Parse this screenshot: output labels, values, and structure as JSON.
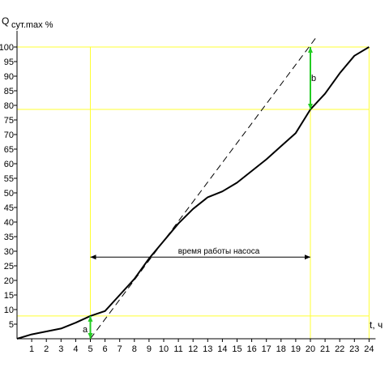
{
  "chart_data": {
    "type": "line",
    "xlabel": "t, ч",
    "ylabel_main": "Q",
    "ylabel_sub": "сут.max %",
    "xlim": [
      0,
      24
    ],
    "ylim": [
      0,
      100
    ],
    "x_ticks": [
      "1",
      "2",
      "3",
      "4",
      "5",
      "6",
      "7",
      "8",
      "9",
      "10",
      "11",
      "12",
      "13",
      "14",
      "15",
      "16",
      "17",
      "18",
      "19",
      "20",
      "21",
      "22",
      "23",
      "24"
    ],
    "y_ticks": [
      "5",
      "10",
      "15",
      "20",
      "25",
      "30",
      "35",
      "40",
      "45",
      "50",
      "55",
      "60",
      "65",
      "70",
      "75",
      "80",
      "85",
      "90",
      "95",
      "100"
    ],
    "series": [
      {
        "x": [
          0,
          1,
          2,
          3,
          4,
          5,
          6,
          7,
          8,
          9,
          10,
          11,
          12,
          13,
          14,
          15,
          16,
          17,
          18,
          19,
          20,
          21,
          22,
          23,
          24
        ],
        "y": [
          0,
          1.5,
          2.5,
          3.5,
          5.5,
          7.8,
          9.5,
          15,
          20.5,
          27.5,
          33.5,
          39.5,
          44.5,
          48.5,
          50.5,
          53.5,
          57.5,
          61.5,
          66,
          70.5,
          78.6,
          84,
          91,
          97,
          100
        ]
      }
    ],
    "pump_line": {
      "x": [
        5,
        20.5
      ],
      "y": [
        0,
        104
      ]
    },
    "guides": {
      "x": [
        5,
        20,
        24
      ],
      "y": [
        7.8,
        78.6,
        100
      ]
    },
    "annotations": {
      "a": "a",
      "b": "b",
      "span": "время работы насоса",
      "span_x": [
        5,
        20
      ]
    },
    "colors": {
      "line": "#000000",
      "guide": "#ffff33",
      "marker": "#22cc22",
      "axis": "#000000"
    },
    "grid": false
  }
}
